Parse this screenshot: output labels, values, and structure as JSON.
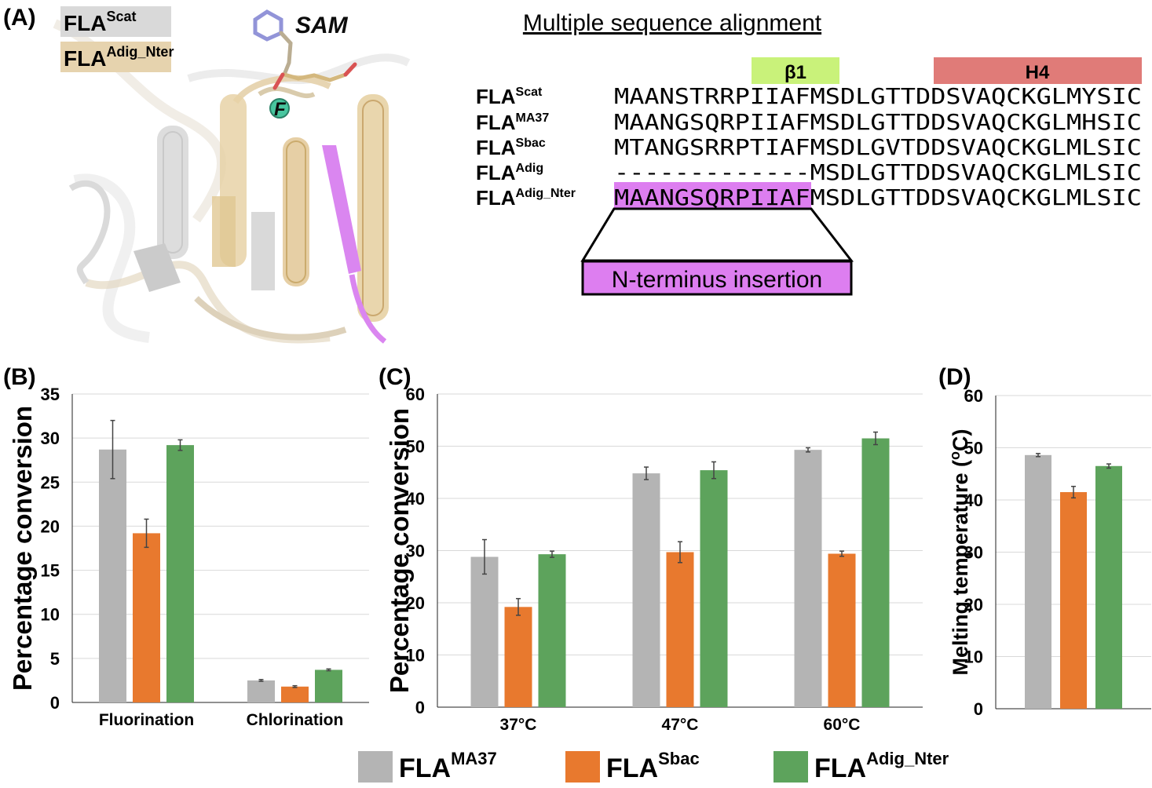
{
  "panel_a": {
    "label": "(A)",
    "legend": [
      {
        "base": "FLA",
        "sup": "Scat",
        "color": "#d9d9d9"
      },
      {
        "base": "FLA",
        "sup": "Adig_Nter",
        "color": "#e6d3ae"
      }
    ],
    "sam_label": "SAM",
    "f_label": "F",
    "alignment_title": "Multiple sequence alignment",
    "beta_label": "β1",
    "helix_label": "H4",
    "sequences": [
      {
        "base": "FLA",
        "sup": "Scat",
        "seq": "MAANSTRRPIIAFMSDLGTTDDSVAQCKGLMYSIC"
      },
      {
        "base": "FLA",
        "sup": "MA37",
        "seq": "MAANGSQRPIIAFMSDLGTTDDSVAQCKGLMHSIC"
      },
      {
        "base": "FLA",
        "sup": "Sbac",
        "seq": "MTANGSRRPTIAFMSDLGVTDDSVAQCKGLMLSIC"
      },
      {
        "base": "FLA",
        "sup": "Adig",
        "seq": "-------------MSDLGTTDDSVAQCKGLMLSIC"
      },
      {
        "base": "FLA",
        "sup": "Adig_Nter",
        "seq": "MAANGSQRPIIAFMSDLGTTDDSVAQCKGLMLSIC"
      }
    ],
    "insertion_label": "N-terminus insertion",
    "colors": {
      "beta": "#c9f27a",
      "helix": "#e07b78",
      "insertion": "#dd7ef0",
      "magenta": "#d980f0"
    }
  },
  "chart_data": [
    {
      "panel": "(B)",
      "type": "bar",
      "categories": [
        "Fluorination",
        "Chlorination"
      ],
      "ylabel": "Percentage conversion",
      "ylim": [
        0,
        35
      ],
      "yticks": [
        0,
        5,
        10,
        15,
        20,
        25,
        30,
        35
      ],
      "series": [
        {
          "name": "FLA MA37",
          "color": "#b4b4b4",
          "values": [
            28.7,
            2.5
          ],
          "errors": [
            3.3,
            0.1
          ]
        },
        {
          "name": "FLA Sbac",
          "color": "#e8792e",
          "values": [
            19.2,
            1.8
          ],
          "errors": [
            1.6,
            0.1
          ]
        },
        {
          "name": "FLA Adig_Nter",
          "color": "#5da35c",
          "values": [
            29.2,
            3.7
          ],
          "errors": [
            0.6,
            0.1
          ]
        }
      ]
    },
    {
      "panel": "(C)",
      "type": "bar",
      "categories": [
        "37°C",
        "47°C",
        "60°C"
      ],
      "ylabel": "Percentage conversion",
      "ylim": [
        0,
        60
      ],
      "yticks": [
        0,
        10,
        20,
        30,
        40,
        50,
        60
      ],
      "series": [
        {
          "name": "FLA MA37",
          "color": "#b4b4b4",
          "values": [
            28.8,
            44.8,
            49.3
          ],
          "errors": [
            3.3,
            1.2,
            0.4
          ]
        },
        {
          "name": "FLA Sbac",
          "color": "#e8792e",
          "values": [
            19.2,
            29.7,
            29.4
          ],
          "errors": [
            1.6,
            2.0,
            0.5
          ]
        },
        {
          "name": "FLA Adig_Nter",
          "color": "#5da35c",
          "values": [
            29.3,
            45.4,
            51.5
          ],
          "errors": [
            0.6,
            1.6,
            1.2
          ]
        }
      ]
    },
    {
      "panel": "(D)",
      "type": "bar",
      "categories": [
        ""
      ],
      "ylabel": "Melting temperature (oC)",
      "ylim": [
        0,
        60
      ],
      "yticks": [
        0,
        10,
        20,
        30,
        40,
        50,
        60
      ],
      "series": [
        {
          "name": "FLA MA37",
          "color": "#b4b4b4",
          "values": [
            48.6
          ],
          "errors": [
            0.3
          ]
        },
        {
          "name": "FLA Sbac",
          "color": "#e8792e",
          "values": [
            41.5
          ],
          "errors": [
            1.1
          ]
        },
        {
          "name": "FLA Adig_Nter",
          "color": "#5da35c",
          "values": [
            46.5
          ],
          "errors": [
            0.4
          ]
        }
      ]
    }
  ],
  "bottom_legend": [
    {
      "base": "FLA",
      "sup": "MA37",
      "color": "#b4b4b4"
    },
    {
      "base": "FLA",
      "sup": "Sbac",
      "color": "#e8792e"
    },
    {
      "base": "FLA",
      "sup": "Adig_Nter",
      "color": "#5da35c"
    }
  ]
}
